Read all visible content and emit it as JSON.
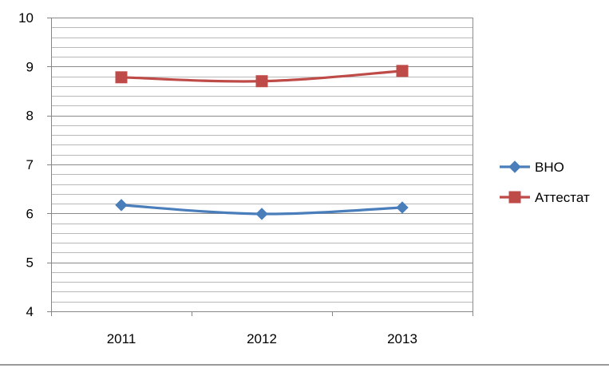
{
  "chart_data": {
    "type": "line",
    "categories": [
      "2011",
      "2012",
      "2013"
    ],
    "series": [
      {
        "name": "ВНО",
        "values": [
          6.17,
          5.99,
          6.12
        ],
        "color": "#4A7EBB",
        "marker": "diamond"
      },
      {
        "name": "Аттестат",
        "values": [
          8.78,
          8.7,
          8.91
        ],
        "color": "#BE4B48",
        "marker": "square"
      }
    ],
    "ylim": [
      4,
      10
    ],
    "yticks": [
      "4",
      "5",
      "6",
      "7",
      "8",
      "9",
      "10"
    ],
    "y_minor_step": 0.2,
    "grid": true,
    "legend": "right",
    "title": "",
    "xlabel": "",
    "ylabel": ""
  }
}
